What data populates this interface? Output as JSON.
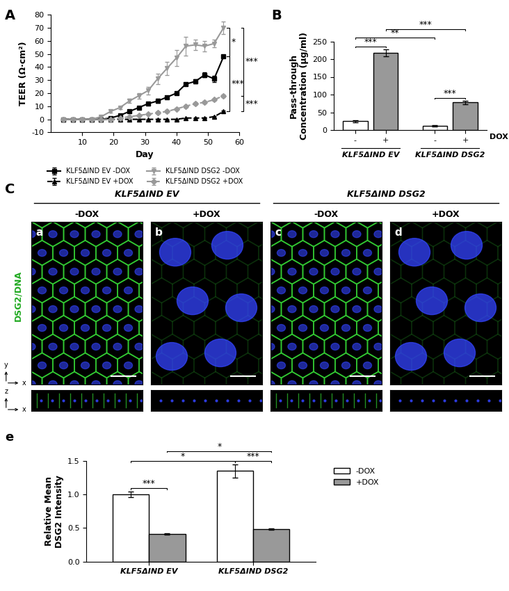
{
  "chart_data": [
    {
      "panel_label": "A",
      "type": "line",
      "x_label": "Day",
      "y_label": "TEER (Ω·cm²)",
      "x": [
        4,
        7,
        10,
        13,
        16,
        19,
        22,
        25,
        28,
        31,
        34,
        37,
        40,
        43,
        46,
        49,
        52,
        55
      ],
      "xlim": [
        0,
        60
      ],
      "xticks": [
        10,
        20,
        30,
        40,
        50,
        60
      ],
      "ylim": [
        -10,
        80
      ],
      "yticks": [
        -10,
        0,
        10,
        20,
        30,
        40,
        50,
        60,
        70,
        80
      ],
      "legend": "upper center",
      "series": [
        {
          "name": "KLF5ΔIND EV -DOX",
          "color": "#000000",
          "marker": "square",
          "line_style": "solid",
          "values": [
            0,
            0,
            0,
            0,
            0,
            1,
            3,
            6,
            9,
            12,
            14,
            17,
            20,
            27,
            29,
            34,
            31,
            48
          ],
          "errors": [
            0,
            0,
            0,
            0,
            0,
            0.5,
            0.5,
            1,
            1,
            1,
            1.5,
            1,
            1,
            1,
            1.5,
            2,
            2.5,
            1
          ]
        },
        {
          "name": "KLF5ΔIND EV +DOX",
          "color": "#000000",
          "marker": "triangle",
          "line_style": "dashed",
          "values": [
            0,
            0,
            0,
            0,
            0,
            0,
            0,
            0,
            0,
            0,
            0,
            0,
            0,
            1,
            1,
            1,
            2,
            6
          ],
          "errors": [
            0,
            0,
            0,
            0,
            0,
            0,
            0,
            0,
            0,
            0,
            0,
            0,
            0,
            0,
            0,
            0,
            0.5,
            0.5
          ]
        },
        {
          "name": "KLF5ΔIND DSG2 -DOX",
          "color": "#999999",
          "marker": "triangle_down",
          "line_style": "solid",
          "values": [
            0,
            0,
            0,
            0,
            2,
            6,
            9,
            14,
            18,
            22,
            31,
            39,
            47,
            56,
            57,
            56,
            58,
            70
          ],
          "errors": [
            0,
            0,
            0,
            0,
            0.5,
            1,
            1,
            1.5,
            2,
            3,
            4,
            5,
            6,
            7,
            4,
            4,
            3,
            5
          ]
        },
        {
          "name": "KLF5ΔIND DSG2 +DOX",
          "color": "#999999",
          "marker": "diamond",
          "line_style": "dashed",
          "values": [
            0,
            0,
            0,
            0,
            0,
            0,
            1,
            2,
            3,
            4,
            5,
            6,
            8,
            10,
            12,
            13,
            15,
            18
          ],
          "errors": [
            0,
            0,
            0,
            0,
            0,
            0,
            0.5,
            0.5,
            0.5,
            0.5,
            1,
            1,
            1,
            1,
            1,
            1,
            1,
            1
          ]
        }
      ],
      "comparisons": [
        {
          "pair": [
            2,
            0
          ],
          "label": "*"
        },
        {
          "pair": [
            2,
            3
          ],
          "label": "***"
        },
        {
          "pair": [
            0,
            1
          ],
          "label": "***"
        },
        {
          "pair": [
            3,
            1
          ],
          "label": "***"
        }
      ]
    },
    {
      "panel_label": "B",
      "type": "bar",
      "y_label": "Pass-through\nConcentration (μg/ml)",
      "categories": [
        "-",
        "+",
        "-",
        "+"
      ],
      "group_labels": [
        "KLF5ΔIND EV",
        "KLF5ΔIND DSG2"
      ],
      "axis_note": "DOX",
      "values": [
        25,
        218,
        12,
        78
      ],
      "errors": [
        3,
        10,
        2,
        5
      ],
      "colors": [
        "#ffffff",
        "#999999",
        "#ffffff",
        "#999999"
      ],
      "ylim": [
        0,
        250
      ],
      "yticks": [
        0,
        50,
        100,
        150,
        200,
        250
      ],
      "comparisons": [
        {
          "pair": [
            0,
            1
          ],
          "label": "***"
        },
        {
          "pair": [
            2,
            3
          ],
          "label": "***"
        },
        {
          "pair": [
            0,
            2
          ],
          "label": "**"
        },
        {
          "pair": [
            1,
            3
          ],
          "label": "***"
        }
      ]
    },
    {
      "panel_label": "e",
      "type": "bar",
      "y_label": "Relative Mean\nDSG2 Intensity",
      "categories": [
        "KLF5ΔIND EV",
        "KLF5ΔIND DSG2"
      ],
      "series": [
        {
          "name": "-DOX",
          "color": "#ffffff",
          "values": [
            1.0,
            1.35
          ],
          "errors": [
            0.04,
            0.1
          ]
        },
        {
          "name": "+DOX",
          "color": "#999999",
          "values": [
            0.41,
            0.48
          ],
          "errors": [
            0.015,
            0.01
          ]
        }
      ],
      "ylim": [
        0,
        1.5
      ],
      "yticks": [
        {
          "value": 0,
          "label": "0.0"
        },
        {
          "value": 0.5,
          "label": "0.5"
        },
        {
          "value": 1.0,
          "label": "1.0"
        },
        {
          "value": 1.5,
          "label": "1.5"
        }
      ],
      "legend": "upper left",
      "comparisons": [
        {
          "pair": [
            [
              0,
              0
            ],
            [
              1,
              0
            ]
          ],
          "label": "***"
        },
        {
          "pair": [
            [
              0,
              1
            ],
            [
              1,
              1
            ]
          ],
          "label": "***"
        },
        {
          "pair": [
            [
              0,
              0
            ],
            [
              0,
              1
            ]
          ],
          "label": "*"
        },
        {
          "pair": [
            [
              1,
              0
            ],
            [
              1,
              1
            ]
          ],
          "label": "*"
        }
      ]
    }
  ],
  "image_panel": {
    "panel_label": "C",
    "stain_label": "DSG2/DNA",
    "xy_axes": [
      "y",
      "x"
    ],
    "xz_axes": [
      "z",
      "x"
    ],
    "images": [
      {
        "label": "a",
        "group": "KLF5ΔIND EV",
        "condition": "-DOX"
      },
      {
        "label": "b",
        "group": "KLF5ΔIND EV",
        "condition": "+DOX"
      },
      {
        "label": "c",
        "group": "KLF5ΔIND DSG2",
        "condition": "-DOX"
      },
      {
        "label": "d",
        "group": "KLF5ΔIND DSG2",
        "condition": "+DOX"
      }
    ]
  }
}
